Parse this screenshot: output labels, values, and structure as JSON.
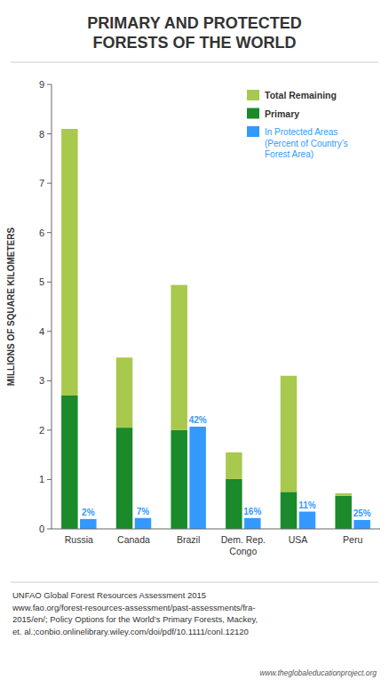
{
  "chart_data": {
    "type": "bar",
    "title": "PRIMARY AND PROTECTED\nFORESTS OF THE WORLD",
    "categories": [
      "Russia",
      "Canada",
      "Brazil",
      "Dem. Rep.\nCongo",
      "USA",
      "Peru"
    ],
    "series": [
      {
        "name": "Total Remaining",
        "color": "#a8c94e",
        "stacked": true,
        "values": [
          5.4,
          1.42,
          2.94,
          0.54,
          2.35,
          0.05
        ]
      },
      {
        "name": "Primary",
        "color": "#1a8a2a",
        "stacked": true,
        "values": [
          2.7,
          2.05,
          2.0,
          1.01,
          0.75,
          0.67
        ]
      },
      {
        "name": "In Protected Areas\n(Percent of Country’s\nForest Area)",
        "color": "#3399ff",
        "stacked": false,
        "values": [
          0.2,
          0.22,
          2.07,
          0.22,
          0.35,
          0.18
        ],
        "annotations": [
          "2%",
          "7%",
          "42%",
          "16%",
          "11%",
          "25%"
        ]
      }
    ],
    "ylabel": "MILLIONS OF SQUARE KILOMETERS",
    "ylim": [
      0,
      9
    ],
    "yticks": [
      0,
      1,
      2,
      3,
      4,
      5,
      6,
      7,
      8,
      9
    ],
    "grid": false,
    "legend": "upper right",
    "note": "UNFAO Global Forest Resources Assessment 2015\nwww.fao.org/forest-resources-assessment/past-assessments/fra-\n2015/en/; Policy Options for the World’s Primary Forests, Mackey,\net. al.;conbio.onlinelibrary.wiley.com/doi/pdf/10.1111/conl.12120",
    "source": "www.theglobaleducationproject.org"
  }
}
